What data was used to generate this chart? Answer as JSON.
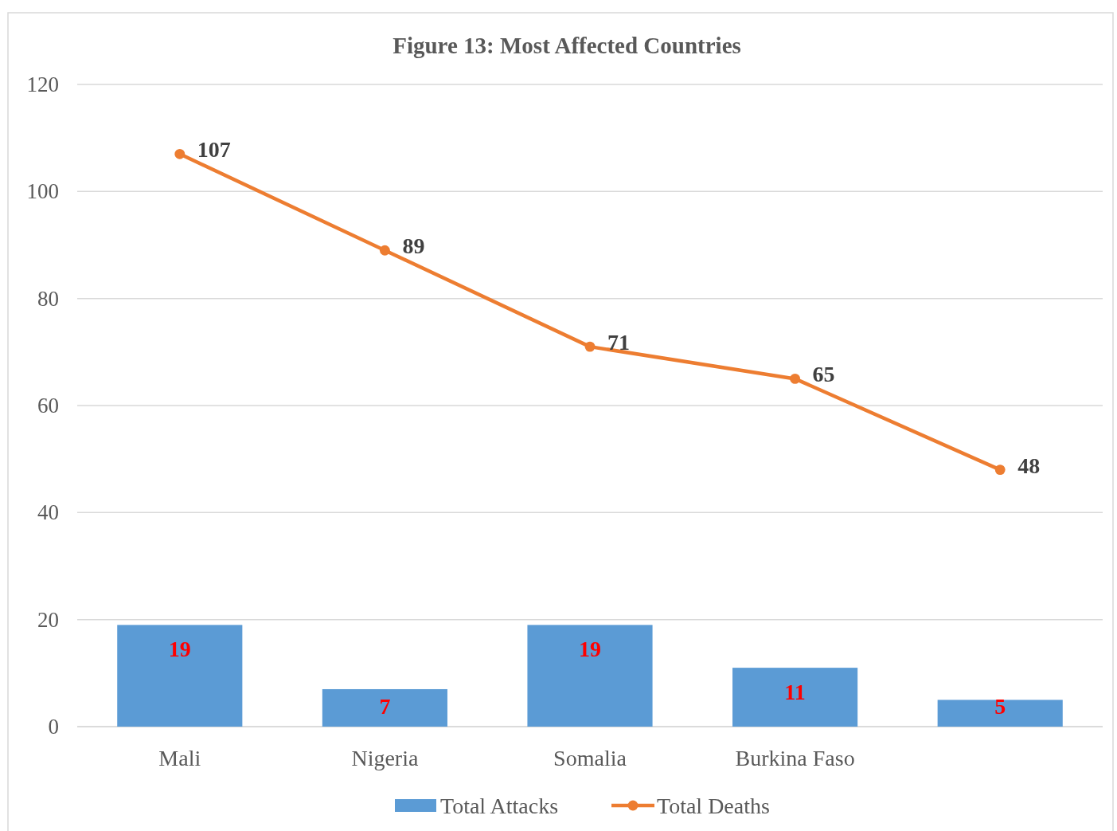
{
  "chart_data": {
    "type": "bar",
    "title": "Figure 13: Most Affected Countries",
    "categories": [
      "Mali",
      "Nigeria",
      "Somalia",
      "Burkina Faso",
      null
    ],
    "series": [
      {
        "name": "Total Attacks",
        "color": "#5b9bd5",
        "values": [
          19,
          7,
          19,
          11,
          5
        ]
      },
      {
        "name": "Total Deaths",
        "type": "line",
        "color": "#ed7d31",
        "values": [
          107,
          89,
          71,
          65,
          48
        ]
      }
    ],
    "ylim": [
      0,
      120
    ],
    "yticks": [
      0,
      20,
      40,
      60,
      80,
      100,
      120
    ],
    "grid": "y",
    "legend": "bottom",
    "marker": "circle",
    "data_labels": true
  }
}
